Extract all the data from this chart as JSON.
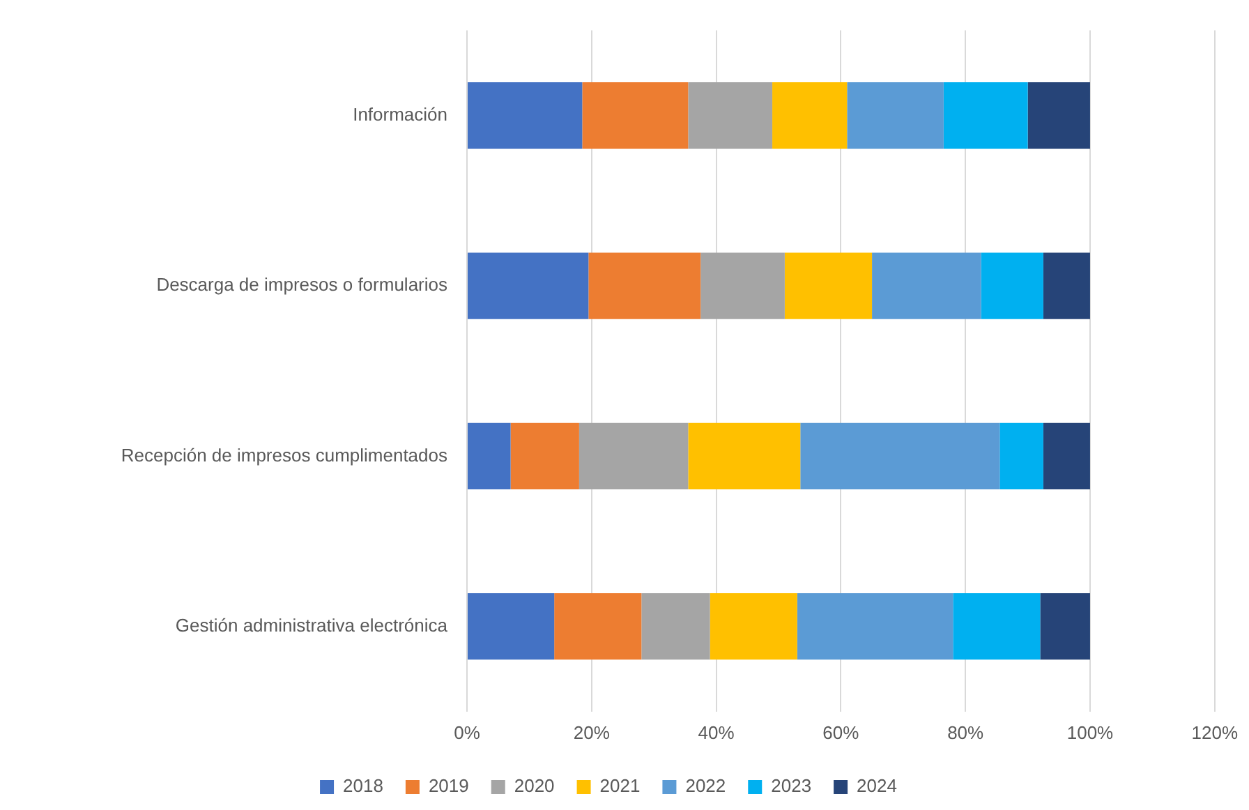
{
  "chart_data": {
    "type": "bar",
    "orientation": "horizontal",
    "stacked": true,
    "categories": [
      "Información",
      "Descarga de impresos o formularios",
      "Recepción de impresos cumplimentados",
      "Gestión administrativa electrónica"
    ],
    "series": [
      {
        "name": "2018",
        "color": "#4472c4",
        "values": [
          18.5,
          19.5,
          7,
          14
        ]
      },
      {
        "name": "2019",
        "color": "#ed7d31",
        "values": [
          17,
          18,
          11,
          14
        ]
      },
      {
        "name": "2020",
        "color": "#a5a5a5",
        "values": [
          13.5,
          13.5,
          17.5,
          11
        ]
      },
      {
        "name": "2021",
        "color": "#ffc000",
        "values": [
          12,
          14,
          18,
          14
        ]
      },
      {
        "name": "2022",
        "color": "#5b9bd5",
        "values": [
          15.5,
          17.5,
          32,
          25
        ]
      },
      {
        "name": "2023",
        "color": "#00b0f0",
        "values": [
          13.5,
          10,
          7,
          14
        ]
      },
      {
        "name": "2024",
        "color": "#264478",
        "values": [
          10,
          7.5,
          7.5,
          8
        ]
      }
    ],
    "xlim": [
      0,
      120
    ],
    "xticks": [
      {
        "value": 0,
        "label": "0%"
      },
      {
        "value": 20,
        "label": "20%"
      },
      {
        "value": 40,
        "label": "40%"
      },
      {
        "value": 60,
        "label": "60%"
      },
      {
        "value": 80,
        "label": "80%"
      },
      {
        "value": 100,
        "label": "100%"
      },
      {
        "value": 120,
        "label": "120%"
      }
    ],
    "grid": "x",
    "legend": "bottom"
  }
}
